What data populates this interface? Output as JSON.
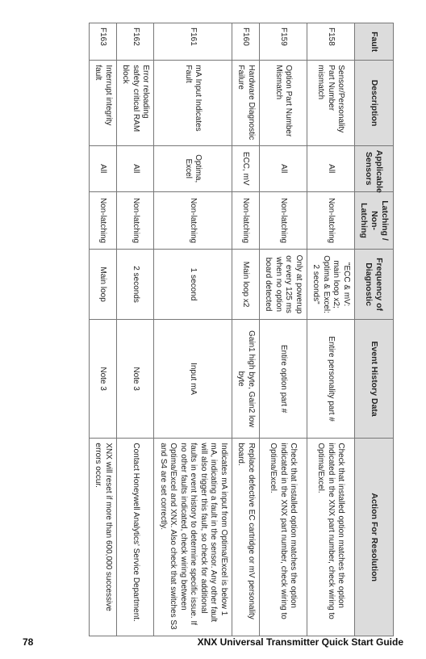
{
  "footer": {
    "pageNumber": "78",
    "title": "XNX Universal Transmitter Quick Start Guide"
  },
  "table": {
    "columns": [
      "Fault",
      "Description",
      "Applicable Sensors",
      "Latching / Non-Latching",
      "Frequency of Diagnostic",
      "Event History Data",
      "Action For Resolution"
    ],
    "rows": [
      {
        "fault": "F158",
        "description": "Sensor/Personality Part Number mismatch",
        "sensors": "All",
        "latching": "Non-latching",
        "frequency": "\"ECC & mV: main loop x2; Optima & Excel: 2 seconds\"",
        "eventData": "Entire personality part #",
        "action": "Check that installed option matches the option indicated in the XNX part number, check wiring to Optima/Excel."
      },
      {
        "fault": "F159",
        "description": "Option Part Number Mismatch",
        "sensors": "All",
        "latching": "Non-latching",
        "frequency": "Only at powerup or every 125 ms when no option board detected",
        "eventData": "Entire option part #",
        "action": "Check that installed option matches the option indicated in the XNX part number, check wiring to Optima/Excel."
      },
      {
        "fault": "F160",
        "description": "Hardware Diagnostic Failure",
        "sensors": "ECC, mV",
        "latching": "Non-latching",
        "frequency": "Main loop x2",
        "eventData": "Gain1 high byte, Gain2 low byte",
        "action": "Replace defective EC cartridge or mV personality board."
      },
      {
        "fault": "F161",
        "description": "mA Input Indicates Fault",
        "sensors": "Optima, Excel",
        "latching": "Non-latching",
        "frequency": "1 second",
        "eventData": "Input mA",
        "action": "Indicates mA input from Optima/Excel is below 1 mA, indicating a fault in the sensor. Any other fault will also trigger this fault, so check for additional faults in event history to determine specific issue. If no other faults indicated, check wiring between Optima/Excel and XNX. Also check that switches S3 and S4 are set correctly."
      },
      {
        "fault": "F162",
        "description": "Error reloading safety critical RAM block",
        "sensors": "All",
        "latching": "Non-latching",
        "frequency": "2 seconds",
        "eventData": "Note 3",
        "action": "Contact Honeywell Analytics' Service Department."
      },
      {
        "fault": "F163",
        "description": "Interrupt integrity fault",
        "sensors": "All",
        "latching": "Non-latching",
        "frequency": "Main loop",
        "eventData": "Note 3",
        "action": "XNX will reset if more than 600,000 successive errors occur."
      }
    ]
  }
}
